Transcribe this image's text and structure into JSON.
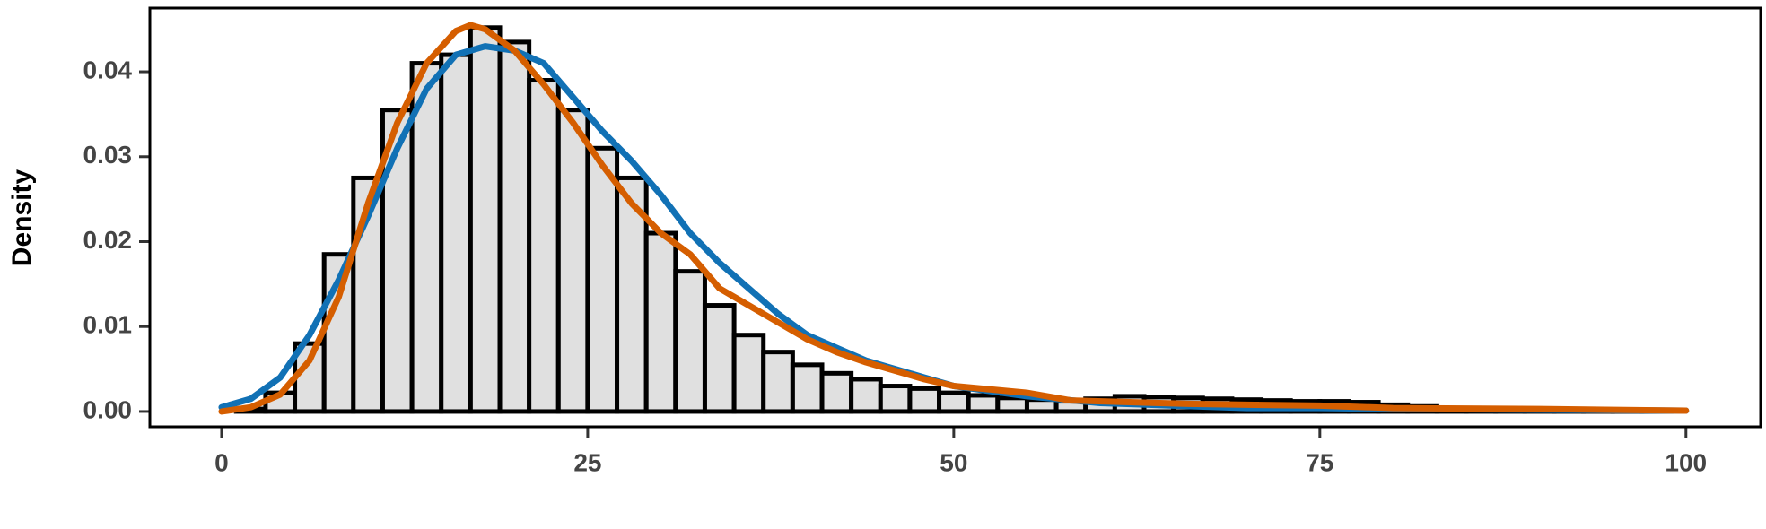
{
  "chart_data": {
    "type": "histogram",
    "ylabel": "Density",
    "bins": [
      1,
      3,
      5,
      7,
      9,
      11,
      13,
      15,
      17,
      19,
      21,
      23,
      25,
      27,
      29,
      31,
      33,
      35,
      37,
      39,
      41,
      43,
      45,
      47,
      49,
      51,
      53,
      55,
      57,
      59,
      61,
      63,
      65,
      67,
      69,
      71,
      73,
      75,
      77,
      79,
      81,
      83,
      85,
      87,
      89,
      91,
      93,
      95,
      97,
      99
    ],
    "counts": [
      0.0003,
      0.0022,
      0.008,
      0.0185,
      0.0275,
      0.0355,
      0.041,
      0.042,
      0.0452,
      0.0435,
      0.039,
      0.0355,
      0.031,
      0.0275,
      0.021,
      0.0165,
      0.0125,
      0.009,
      0.007,
      0.0055,
      0.0045,
      0.0038,
      0.003,
      0.0027,
      0.0022,
      0.0019,
      0.0016,
      0.0014,
      0.0012,
      0.0015,
      0.0018,
      0.0017,
      0.0016,
      0.0015,
      0.0014,
      0.0013,
      0.0012,
      0.0012,
      0.0011,
      0.0008,
      0.0006,
      0.0004,
      0.0003,
      0.0002,
      0.0002,
      0.0002,
      0.0001,
      0.0001,
      0.0001
    ],
    "bar_color": "#e0e0e0",
    "curves": [
      {
        "color": "#1171b5",
        "x": [
          0,
          2,
          4,
          6,
          8,
          10,
          12,
          14,
          16,
          18,
          20,
          22,
          24,
          26,
          28,
          30,
          32,
          34,
          36,
          38,
          40,
          42,
          44,
          46,
          48,
          50,
          55,
          60,
          65,
          70,
          75,
          80,
          90,
          100
        ],
        "y": [
          0.0005,
          0.0015,
          0.004,
          0.009,
          0.0155,
          0.023,
          0.031,
          0.038,
          0.042,
          0.043,
          0.0425,
          0.041,
          0.037,
          0.033,
          0.0295,
          0.0255,
          0.021,
          0.0175,
          0.0145,
          0.0115,
          0.009,
          0.0075,
          0.006,
          0.005,
          0.004,
          0.003,
          0.0018,
          0.001,
          0.0007,
          0.0004,
          0.0004,
          0.0003,
          0.0002,
          0.0001
        ]
      },
      {
        "color": "#d55e00",
        "x": [
          0,
          2,
          4,
          6,
          8,
          10,
          12,
          14,
          16,
          17,
          18,
          20,
          22,
          24,
          26,
          28,
          30,
          32,
          34,
          36,
          38,
          40,
          42,
          44,
          46,
          48,
          50,
          55,
          58,
          62,
          66,
          70,
          75,
          80,
          90,
          100
        ],
        "y": [
          0.0,
          0.0005,
          0.002,
          0.006,
          0.0135,
          0.0245,
          0.034,
          0.041,
          0.0448,
          0.0455,
          0.045,
          0.0425,
          0.0385,
          0.034,
          0.029,
          0.0245,
          0.021,
          0.0185,
          0.0145,
          0.0125,
          0.0105,
          0.0085,
          0.007,
          0.0058,
          0.0048,
          0.0038,
          0.003,
          0.0022,
          0.0013,
          0.0011,
          0.0009,
          0.0008,
          0.0007,
          0.0004,
          0.0003,
          0.0001
        ]
      }
    ],
    "xlim": [
      -4.9,
      105.1
    ],
    "ylim": [
      -0.0018,
      0.0475
    ],
    "xticks": [
      0,
      25,
      50,
      75,
      100
    ],
    "yticks": [
      {
        "value": 0,
        "label": "0.00"
      },
      {
        "value": 0.01,
        "label": "0.01"
      },
      {
        "value": 0.02,
        "label": "0.02"
      },
      {
        "value": 0.03,
        "label": "0.03"
      },
      {
        "value": 0.04,
        "label": "0.04"
      }
    ]
  }
}
